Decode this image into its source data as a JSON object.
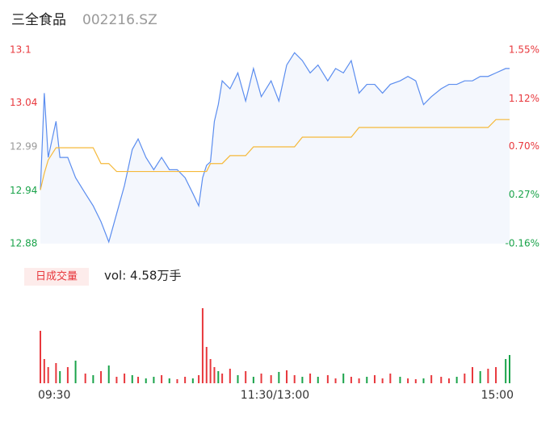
{
  "header": {
    "name": "三全食品",
    "code": "002216.SZ"
  },
  "volume_legend": {
    "label": "日成交量",
    "text": "vol: 4.58万手"
  },
  "chart_data": [
    {
      "type": "line",
      "x": [
        0,
        2,
        4,
        8,
        10,
        14,
        18,
        23,
        27,
        31,
        35,
        39,
        43,
        47,
        50,
        54,
        58,
        62,
        66,
        70,
        74,
        78,
        81,
        83,
        85,
        87,
        89,
        91,
        93,
        97,
        101,
        105,
        109,
        113,
        118,
        122,
        126,
        130,
        134,
        138,
        142,
        147,
        151,
        155,
        159,
        163,
        167,
        171,
        175,
        179,
        184,
        188,
        192,
        196,
        200,
        205,
        209,
        213,
        217,
        221,
        225,
        229,
        233,
        238,
        240
      ],
      "series": [
        {
          "name": "price",
          "color": "#5b8def",
          "values": [
            12.941,
            13.051,
            12.978,
            13.019,
            12.978,
            12.978,
            12.955,
            12.937,
            12.923,
            12.905,
            12.882,
            12.914,
            12.946,
            12.987,
            12.999,
            12.978,
            12.964,
            12.978,
            12.964,
            12.964,
            12.955,
            12.937,
            12.923,
            12.955,
            12.969,
            12.973,
            13.019,
            13.038,
            13.065,
            13.056,
            13.074,
            13.042,
            13.079,
            13.047,
            13.065,
            13.042,
            13.083,
            13.097,
            13.088,
            13.074,
            13.083,
            13.065,
            13.079,
            13.074,
            13.088,
            13.051,
            13.061,
            13.061,
            13.051,
            13.061,
            13.065,
            13.07,
            13.065,
            13.038,
            13.047,
            13.056,
            13.061,
            13.061,
            13.065,
            13.065,
            13.07,
            13.07,
            13.074,
            13.079,
            13.079
          ]
        },
        {
          "name": "average",
          "color": "#f5b93a",
          "values": [
            12.941,
            12.96,
            12.975,
            12.989,
            12.989,
            12.989,
            12.989,
            12.989,
            12.989,
            12.971,
            12.971,
            12.962,
            12.962,
            12.962,
            12.962,
            12.962,
            12.962,
            12.962,
            12.962,
            12.962,
            12.962,
            12.962,
            12.962,
            12.962,
            12.962,
            12.971,
            12.971,
            12.971,
            12.971,
            12.98,
            12.98,
            12.98,
            12.99,
            12.99,
            12.99,
            12.99,
            12.99,
            12.99,
            13.001,
            13.001,
            13.001,
            13.001,
            13.001,
            13.001,
            13.001,
            13.012,
            13.012,
            13.012,
            13.012,
            13.012,
            13.012,
            13.012,
            13.012,
            13.012,
            13.012,
            13.012,
            13.012,
            13.012,
            13.012,
            13.012,
            13.012,
            13.012,
            13.021,
            13.021,
            13.021
          ]
        }
      ],
      "xlim": [
        0,
        240
      ],
      "xticks": [
        {
          "value": 0,
          "label": "09:30"
        },
        {
          "value": 120,
          "label": "11:30/13:00"
        },
        {
          "value": 240,
          "label": "15:00"
        }
      ],
      "ylim": [
        12.88,
        13.1
      ],
      "yticks": [
        13.1,
        13.04,
        12.99,
        12.94,
        12.88
      ],
      "ytick_colors": [
        "#e8383d",
        "#e8383d",
        "#999999",
        "#1aa34a",
        "#1aa34a"
      ],
      "y2lim": [
        -0.16,
        1.55
      ],
      "y2ticks": [
        {
          "value": 1.55,
          "label": "1.55%"
        },
        {
          "value": 1.12,
          "label": "1.12%"
        },
        {
          "value": 0.7,
          "label": "0.70%"
        },
        {
          "value": 0.27,
          "label": "0.27%"
        },
        {
          "value": -0.16,
          "label": "-0.16%"
        }
      ],
      "fill": "#f4f7fd"
    },
    {
      "type": "volume",
      "x": [
        0,
        2,
        4,
        8,
        10,
        14,
        18,
        23,
        27,
        31,
        35,
        39,
        43,
        47,
        50,
        54,
        58,
        62,
        66,
        70,
        74,
        78,
        81,
        83,
        85,
        87,
        89,
        91,
        93,
        97,
        101,
        105,
        109,
        113,
        118,
        122,
        126,
        130,
        134,
        138,
        142,
        147,
        151,
        155,
        159,
        163,
        167,
        171,
        175,
        179,
        184,
        188,
        192,
        196,
        200,
        205,
        209,
        213,
        217,
        221,
        225,
        229,
        233,
        238,
        240
      ],
      "values": [
        65,
        30,
        20,
        25,
        15,
        20,
        28,
        12,
        10,
        15,
        22,
        8,
        12,
        10,
        8,
        6,
        8,
        10,
        6,
        5,
        8,
        6,
        10,
        93,
        45,
        30,
        20,
        15,
        12,
        18,
        10,
        15,
        8,
        12,
        10,
        14,
        16,
        10,
        8,
        12,
        8,
        10,
        6,
        12,
        8,
        6,
        8,
        10,
        6,
        12,
        8,
        6,
        5,
        6,
        10,
        8,
        6,
        8,
        12,
        20,
        15,
        18,
        20,
        30,
        35
      ],
      "colors": [
        "#e8383d",
        "#e8383d",
        "#e8383d",
        "#e8383d",
        "#1aa34a",
        "#e8383d",
        "#1aa34a",
        "#e8383d",
        "#1aa34a",
        "#e8383d",
        "#1aa34a",
        "#e8383d",
        "#e8383d",
        "#1aa34a",
        "#e8383d",
        "#1aa34a",
        "#1aa34a",
        "#e8383d",
        "#1aa34a",
        "#e8383d",
        "#e8383d",
        "#1aa34a",
        "#e8383d",
        "#e8383d",
        "#e8383d",
        "#e8383d",
        "#e8383d",
        "#1aa34a",
        "#e8383d",
        "#e8383d",
        "#1aa34a",
        "#e8383d",
        "#1aa34a",
        "#e8383d",
        "#e8383d",
        "#1aa34a",
        "#e8383d",
        "#e8383d",
        "#1aa34a",
        "#e8383d",
        "#1aa34a",
        "#e8383d",
        "#e8383d",
        "#1aa34a",
        "#e8383d",
        "#e8383d",
        "#1aa34a",
        "#e8383d",
        "#e8383d",
        "#e8383d",
        "#1aa34a",
        "#e8383d",
        "#e8383d",
        "#1aa34a",
        "#e8383d",
        "#e8383d",
        "#e8383d",
        "#1aa34a",
        "#e8383d",
        "#e8383d",
        "#1aa34a",
        "#e8383d",
        "#e8383d",
        "#1aa34a",
        "#1aa34a"
      ]
    }
  ]
}
